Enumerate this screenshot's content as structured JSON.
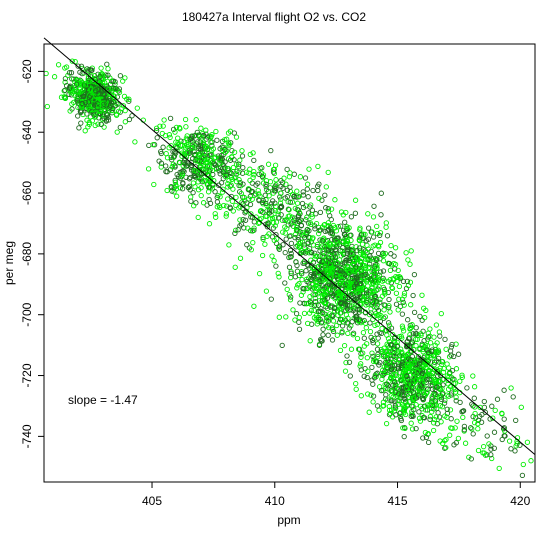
{
  "chart_data": {
    "type": "scatter",
    "title": "180427a   Interval flight O2 vs. CO2",
    "xlabel": "ppm",
    "ylabel": "per meg",
    "xlim": [
      400.6,
      420.6
    ],
    "ylim": [
      -755,
      -611
    ],
    "xticks": [
      405,
      410,
      415,
      420
    ],
    "yticks": [
      -740,
      -720,
      -700,
      -680,
      -660,
      -640,
      -620
    ],
    "grid": false,
    "legend": "none",
    "annotation": "slope =  -1.47",
    "slope": -1.47,
    "fit_line": {
      "x": [
        400.6,
        420.6
      ],
      "y": [
        -609,
        -746
      ]
    },
    "colors": {
      "series_a": "#00ee00",
      "series_b": "#1f6b1f",
      "fit_line": "#000000"
    },
    "point_clusters": [
      {
        "name": "cluster-1",
        "x_center": 402.6,
        "y_center": -628,
        "count": 520
      },
      {
        "name": "cluster-2",
        "x_center": 407.0,
        "y_center": -650,
        "count": 420
      },
      {
        "name": "cluster-3",
        "x_center": 409.8,
        "y_center": -665,
        "count": 300
      },
      {
        "name": "cluster-4",
        "x_center": 412.8,
        "y_center": -688,
        "count": 1100
      },
      {
        "name": "cluster-5",
        "x_center": 415.6,
        "y_center": -720,
        "count": 750
      },
      {
        "name": "tail",
        "x_center": 418.5,
        "y_center": -738,
        "count": 90
      }
    ]
  }
}
